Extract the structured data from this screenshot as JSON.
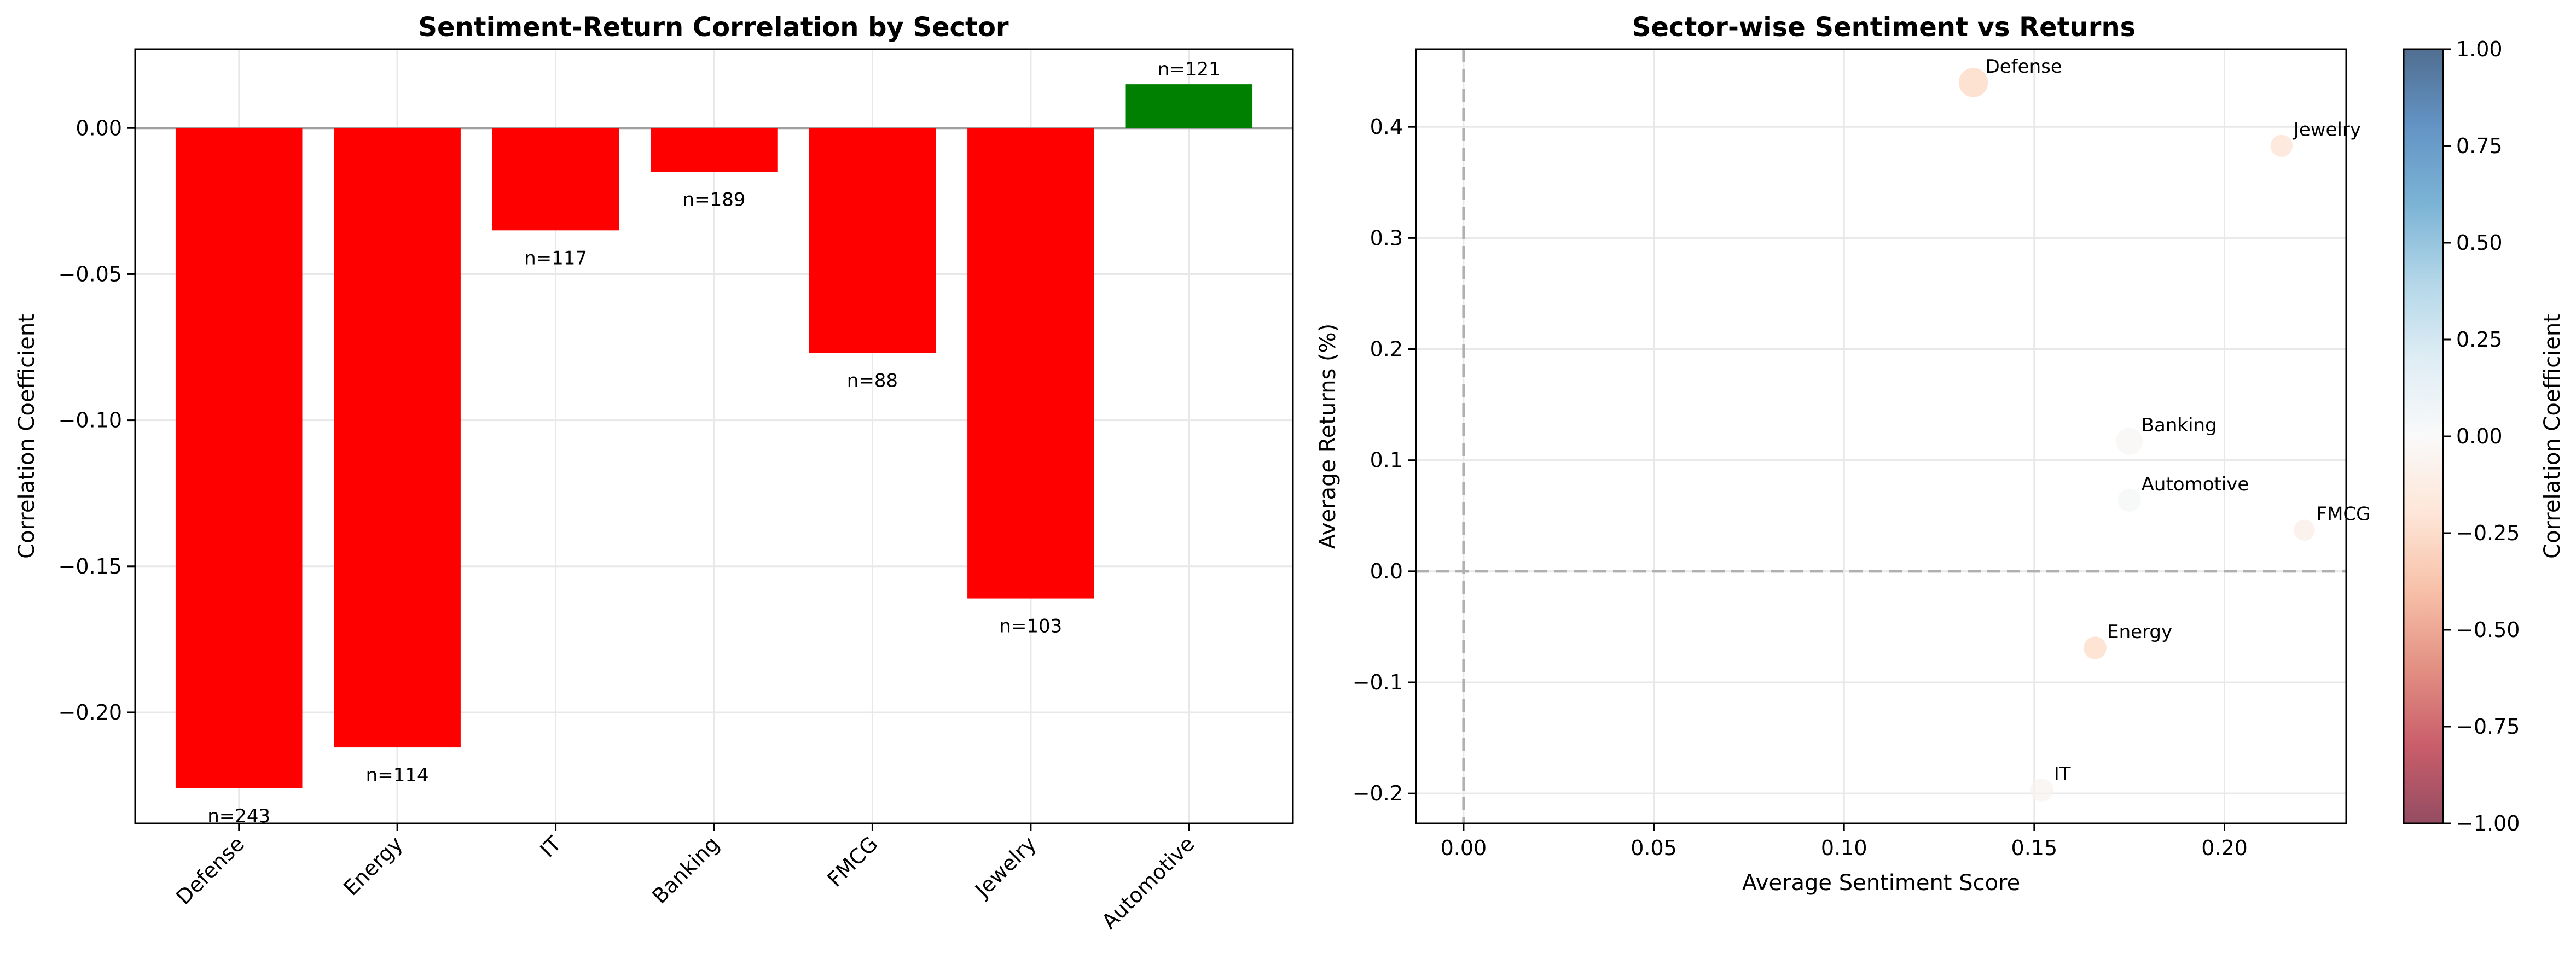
{
  "chart_data": [
    {
      "type": "bar",
      "title": "Sentiment-Return Correlation by Sector",
      "xlabel": "",
      "ylabel": "Correlation Coefficient",
      "categories": [
        "Defense",
        "Energy",
        "IT",
        "Banking",
        "FMCG",
        "Jewelry",
        "Automotive"
      ],
      "values": [
        -0.226,
        -0.212,
        -0.035,
        -0.015,
        -0.077,
        -0.161,
        0.015
      ],
      "labels": [
        "n=243",
        "n=114",
        "n=117",
        "n=189",
        "n=88",
        "n=103",
        "n=121"
      ],
      "ylim": [
        -0.238,
        0.027
      ],
      "yticks": [
        0.0,
        -0.05,
        -0.1,
        -0.15,
        -0.2
      ],
      "ytick_labels": [
        "0.00",
        "−0.05",
        "−0.10",
        "−0.15",
        "−0.20"
      ],
      "grid": true,
      "colors": {
        "negative": "#ff0000",
        "positive": "#008000",
        "zero_line": "#a0a0a0"
      }
    },
    {
      "type": "scatter",
      "title": "Sector-wise Sentiment vs Returns",
      "xlabel": "Average Sentiment Score",
      "ylabel": "Average Returns (%)",
      "points": [
        {
          "label": "Defense",
          "x": 0.134,
          "y": 0.44,
          "corr": -0.226,
          "n": 243
        },
        {
          "label": "Jewelry",
          "x": 0.215,
          "y": 0.383,
          "corr": -0.161,
          "n": 103
        },
        {
          "label": "Banking",
          "x": 0.175,
          "y": 0.117,
          "corr": -0.015,
          "n": 189
        },
        {
          "label": "Automotive",
          "x": 0.175,
          "y": 0.064,
          "corr": 0.015,
          "n": 121
        },
        {
          "label": "FMCG",
          "x": 0.221,
          "y": 0.037,
          "corr": -0.077,
          "n": 88
        },
        {
          "label": "Energy",
          "x": 0.166,
          "y": -0.069,
          "corr": -0.212,
          "n": 114
        },
        {
          "label": "IT",
          "x": 0.152,
          "y": -0.197,
          "corr": -0.035,
          "n": 117
        }
      ],
      "xlim": [
        -0.0125,
        0.232
      ],
      "ylim": [
        -0.227,
        0.47
      ],
      "xticks": [
        0.0,
        0.05,
        0.1,
        0.15,
        0.2
      ],
      "xtick_labels": [
        "0.00",
        "0.05",
        "0.10",
        "0.15",
        "0.20"
      ],
      "yticks": [
        -0.2,
        -0.1,
        0.0,
        0.1,
        0.2,
        0.3,
        0.4
      ],
      "ytick_labels": [
        "−0.2",
        "−0.1",
        "0.0",
        "0.1",
        "0.2",
        "0.3",
        "0.4"
      ],
      "grid": true,
      "colorbar": {
        "label": "Correlation Coefficient",
        "range": [
          -1.0,
          1.0
        ],
        "ticks": [
          1.0,
          0.75,
          0.5,
          0.25,
          0.0,
          -0.25,
          -0.5,
          -0.75,
          -1.0
        ],
        "tick_labels": [
          "1.00",
          "0.75",
          "0.50",
          "0.25",
          "0.00",
          "−0.25",
          "−0.50",
          "−0.75",
          "−1.00"
        ],
        "colormap": "RdBu",
        "stops": [
          "#67001f",
          "#b2182b",
          "#d6604d",
          "#f4a582",
          "#fddbc7",
          "#f7f7f7",
          "#d1e5f0",
          "#92c5de",
          "#4393c3",
          "#2166ac",
          "#053061"
        ]
      }
    }
  ]
}
